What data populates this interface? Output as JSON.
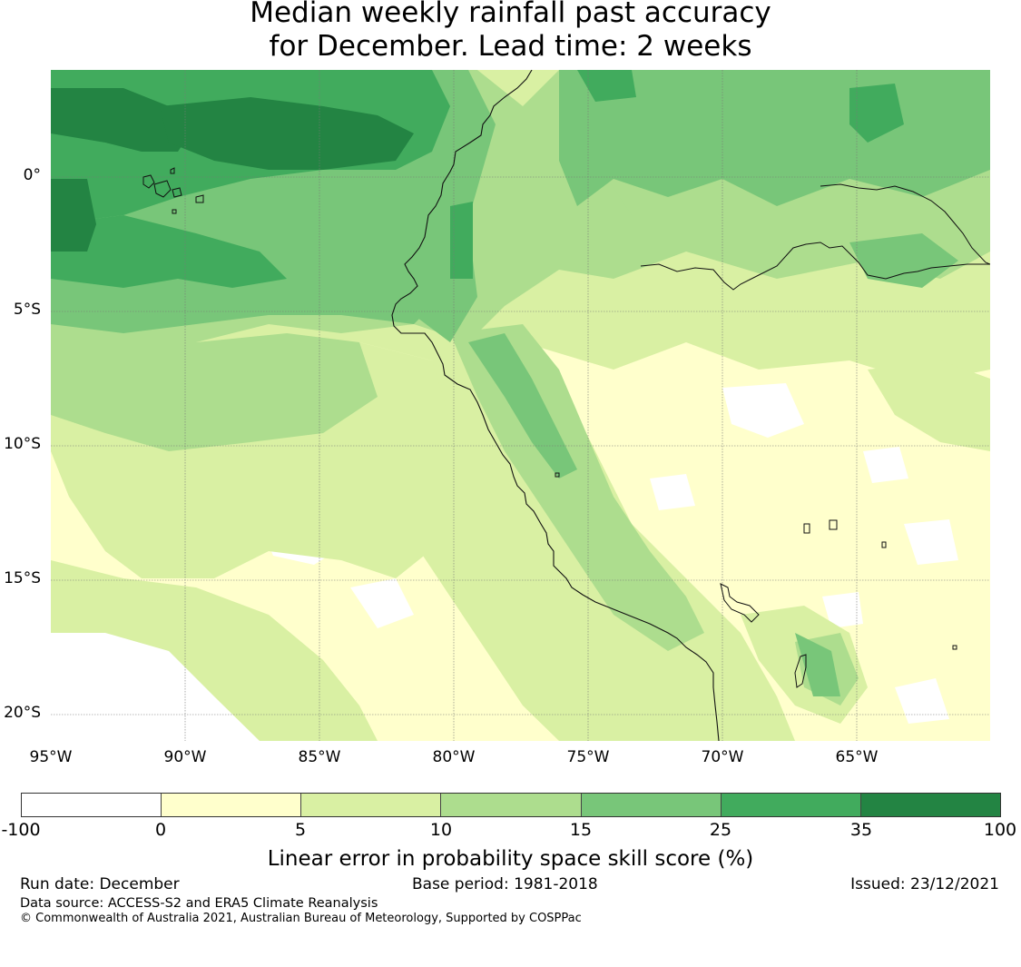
{
  "title": {
    "line1": "Median weekly rainfall past accuracy",
    "line2": "for December. Lead time: 2 weeks"
  },
  "map": {
    "lat_labels": [
      "0°",
      "5°S",
      "10°S",
      "15°S",
      "20°S"
    ],
    "lon_labels": [
      "95°W",
      "90°W",
      "85°W",
      "80°W",
      "75°W",
      "70°W",
      "65°W"
    ],
    "features": [
      "coastline",
      "amazon-river",
      "galapagos-islands",
      "lake-titicaca"
    ]
  },
  "colorbar": {
    "colors": [
      "#ffffff",
      "#ffffcc",
      "#d9f0a3",
      "#addd8e",
      "#78c679",
      "#41ab5d",
      "#238443"
    ],
    "ticks": [
      "-100",
      "0",
      "5",
      "10",
      "15",
      "25",
      "35",
      "100"
    ],
    "label": "Linear error in probability space skill score (%)"
  },
  "footer": {
    "run_date": "Run date: December",
    "base_period": "Base period: 1981-2018",
    "issued": "Issued: 23/12/2021",
    "data_source": "Data source: ACCESS-S2 and ERA5 Climate Reanalysis",
    "copyright": "© Commonwealth of Australia 2021, Australian Bureau of Meteorology, Supported by COSPPac"
  }
}
